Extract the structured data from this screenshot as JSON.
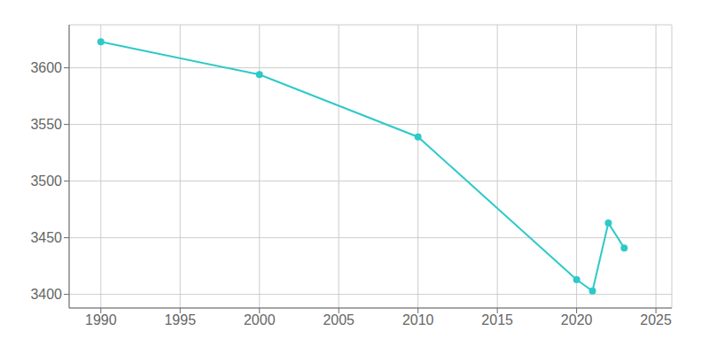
{
  "chart_data": {
    "type": "line",
    "x": [
      1990,
      2000,
      2010,
      2020,
      2021,
      2022,
      2023
    ],
    "values": [
      3623,
      3594,
      3539,
      3413,
      3403,
      3463,
      3441
    ],
    "color": "#2ec9c9",
    "marker": "circle",
    "xlim": [
      1988,
      2026
    ],
    "ylim": [
      3388,
      3638
    ],
    "xticks": [
      1990,
      1995,
      2000,
      2005,
      2010,
      2015,
      2020,
      2025
    ],
    "yticks": [
      3400,
      3450,
      3500,
      3550,
      3600
    ],
    "grid": true
  }
}
